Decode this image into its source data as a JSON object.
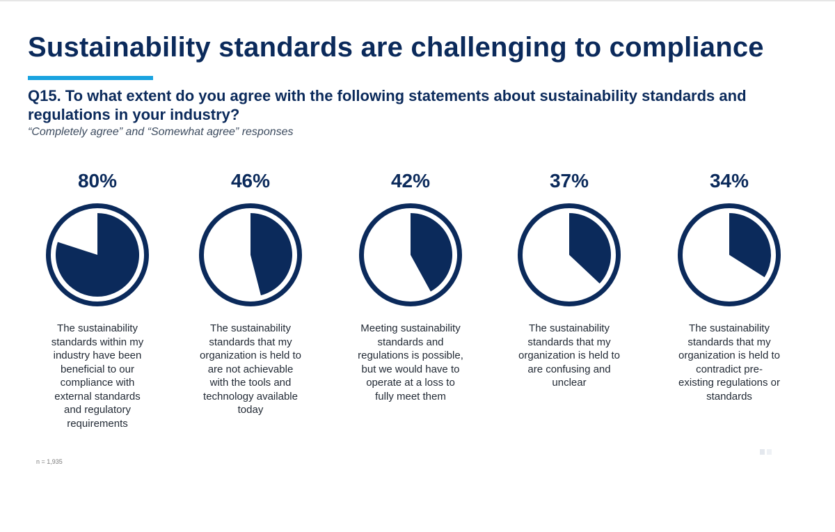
{
  "header": {
    "title": "Sustainability standards are challenging to compliance",
    "question": "Q15. To what extent do you agree with the following statements about sustainability standards and regulations in your industry?",
    "subtitle": "“Completely agree” and “Somewhat agree” responses"
  },
  "footnote": "n = 1,935",
  "colors": {
    "primary": "#0b2a5b",
    "accent": "#1aa3e0",
    "background": "#ffffff"
  },
  "chart_data": {
    "type": "pie",
    "title": "Sustainability standards are challenging to compliance",
    "subtitle": "“Completely agree” and “Somewhat agree” responses",
    "unit": "%",
    "series": [
      {
        "name": "The sustainability standards within my industry have been beneficial to our compliance with external standards and regulatory requirements",
        "value": 80,
        "value_label": "80%",
        "label_lines": [
          "The sustainability",
          "standards within my",
          "industry have been",
          "beneficial to our",
          "compliance with",
          "external standards",
          "and regulatory",
          "requirements"
        ]
      },
      {
        "name": "The sustainability standards that my organization is held to are not achievable with the tools and technology available today",
        "value": 46,
        "value_label": "46%",
        "label_lines": [
          "The sustainability",
          "standards that my",
          "organization is held to",
          "are not achievable",
          "with the tools and",
          "technology available",
          "today"
        ]
      },
      {
        "name": "Meeting sustainability standards and regulations is possible, but we would have to operate at a loss to fully meet them",
        "value": 42,
        "value_label": "42%",
        "label_lines": [
          "Meeting sustainability",
          "standards and",
          "regulations is possible,",
          "but we would have to",
          "operate at a loss to",
          "fully meet them"
        ]
      },
      {
        "name": "The sustainability standards that my organization is held to are confusing and unclear",
        "value": 37,
        "value_label": "37%",
        "label_lines": [
          "The sustainability",
          "standards that my",
          "organization is held to",
          "are confusing and",
          "unclear"
        ]
      },
      {
        "name": "The sustainability standards that my organization is held to contradict pre-existing regulations or standards",
        "value": 34,
        "value_label": "34%",
        "label_lines": [
          "The sustainability",
          "standards that my",
          "organization is held to",
          "contradict pre-",
          "existing regulations or",
          "standards"
        ]
      }
    ]
  }
}
